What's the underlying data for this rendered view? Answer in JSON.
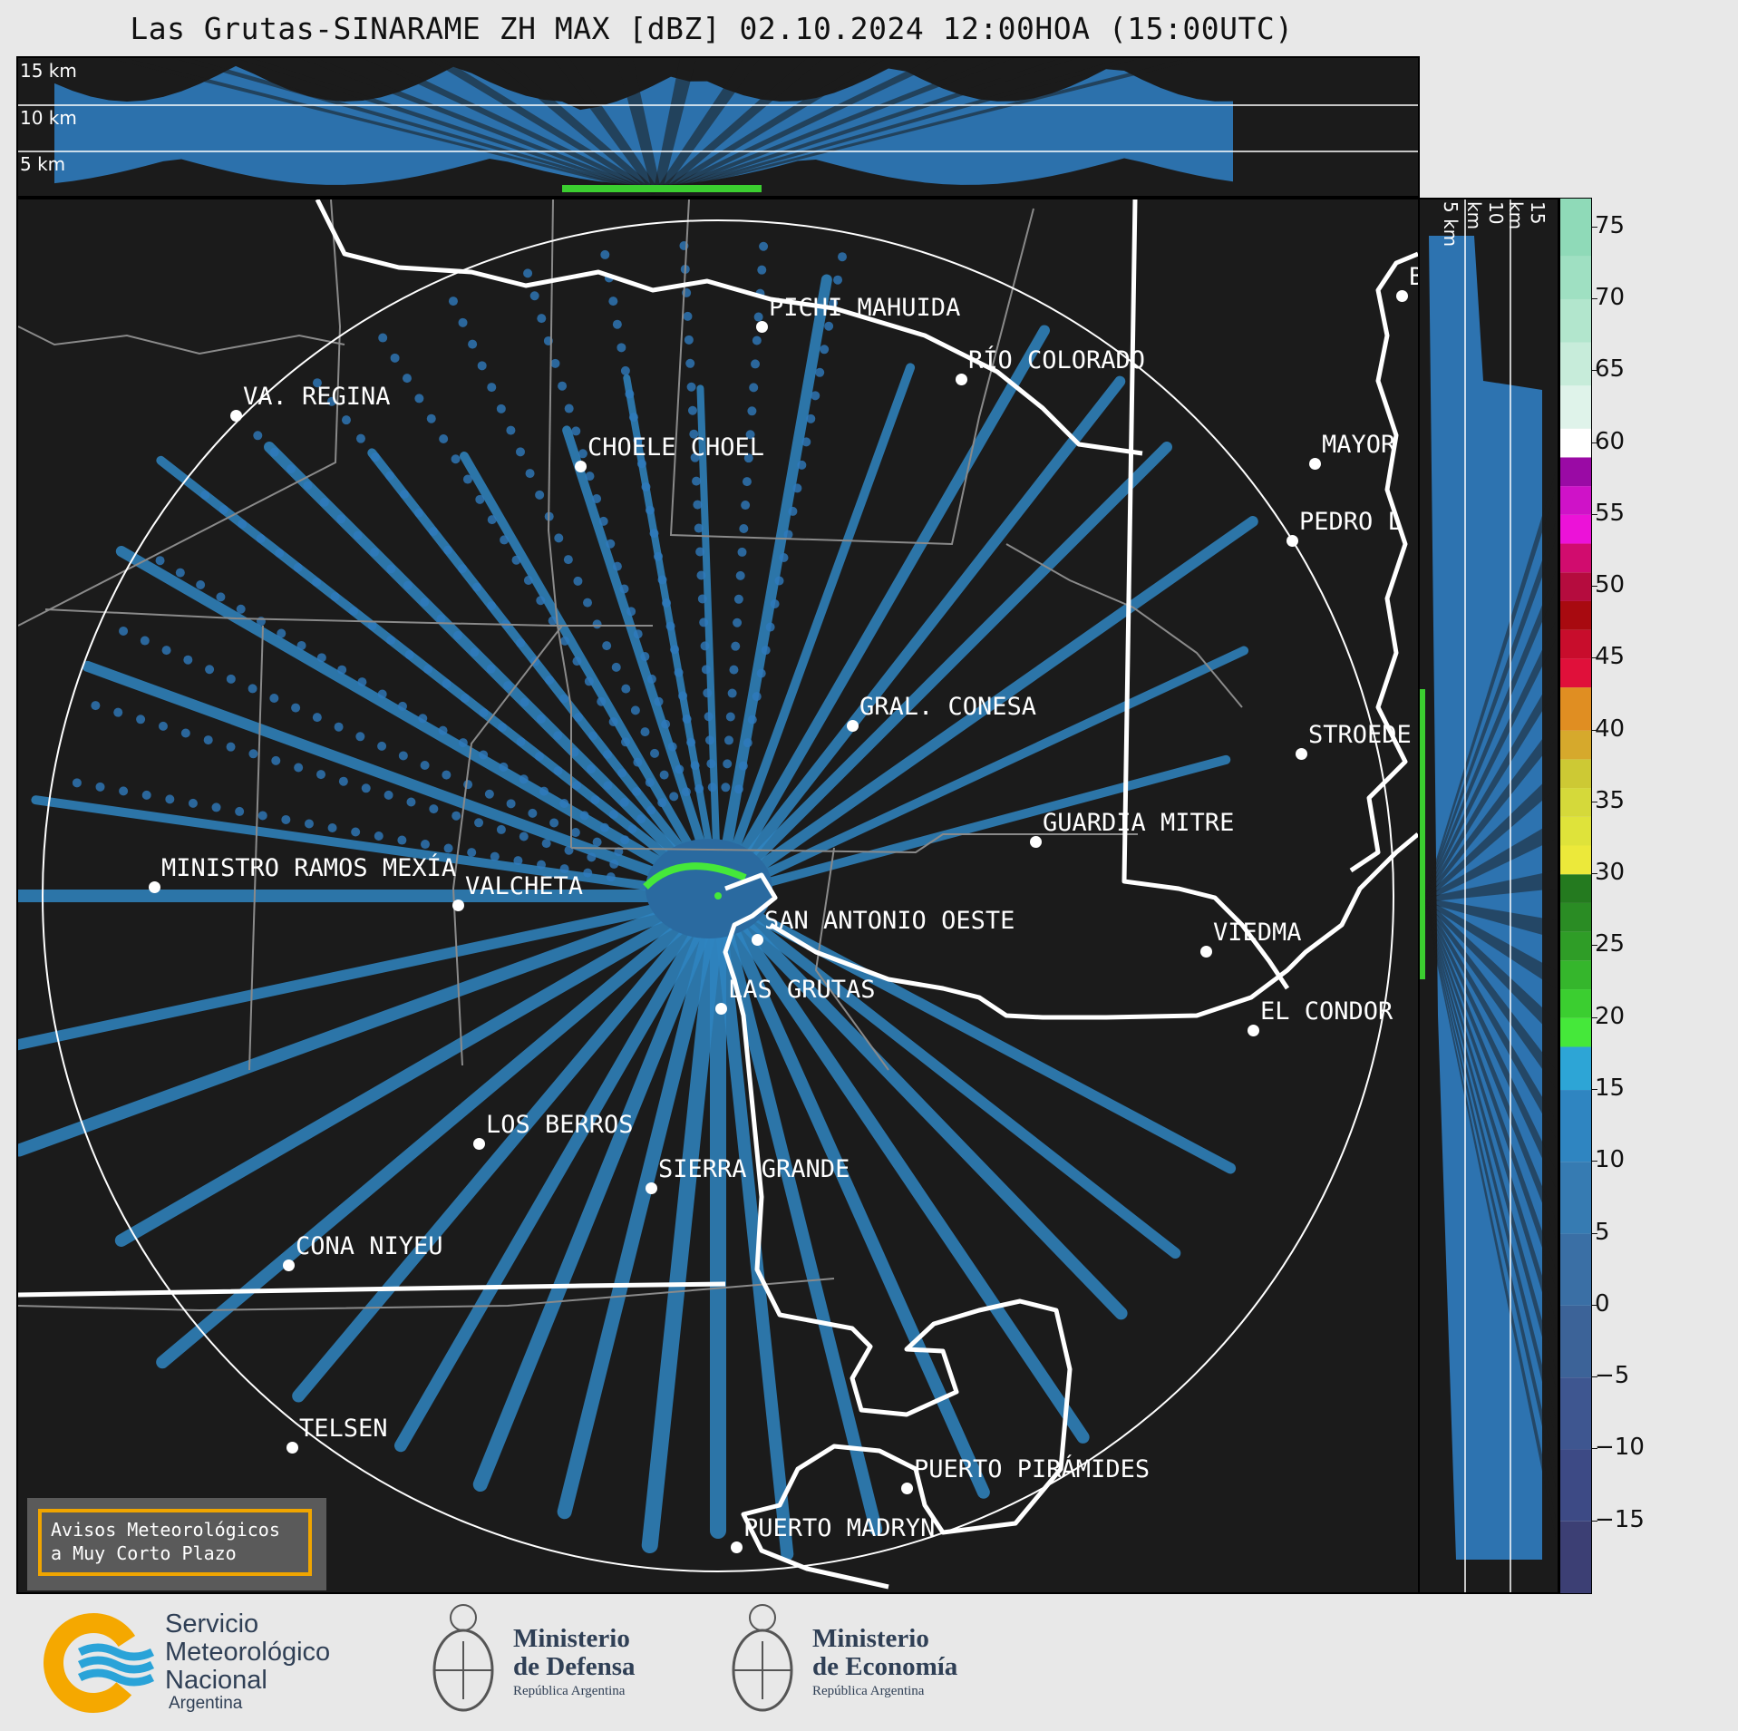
{
  "title": "Las Grutas-SINARAME ZH MAX [dBZ] 02.10.2024 12:00HOA (15:00UTC)",
  "altitude_labels_top": [
    "15 km",
    "10 km",
    "5 km"
  ],
  "altitude_labels_side": [
    "5 km",
    "10 km",
    "15 km"
  ],
  "colorbar": {
    "ticks": [
      "75",
      "70",
      "65",
      "60",
      "55",
      "50",
      "45",
      "40",
      "35",
      "30",
      "25",
      "20",
      "15",
      "10",
      "5",
      "0",
      "−5",
      "−10",
      "−15"
    ],
    "color_stops": [
      {
        "from": -20,
        "to": 18,
        "color": "#2f7bbd"
      },
      {
        "from": 18,
        "to": 30,
        "color": "#2fa832"
      },
      {
        "from": 30,
        "to": 43,
        "color": "#d8b82c"
      },
      {
        "from": 43,
        "to": 50,
        "color": "#c8102e"
      },
      {
        "from": 50,
        "to": 59,
        "color": "#c800c8"
      },
      {
        "from": 59,
        "to": 77,
        "color": "#b6ecd2"
      }
    ]
  },
  "cities": [
    {
      "name": "PICHI MAHUIDA"
    },
    {
      "name": "RÍO COLORADO"
    },
    {
      "name": "VA. REGINA"
    },
    {
      "name": "CHOELE CHOEL"
    },
    {
      "name": "MAYOR"
    },
    {
      "name": "PEDRO L"
    },
    {
      "name": "GRAL. CONESA"
    },
    {
      "name": "STROEDE"
    },
    {
      "name": "GUARDIA MITRE"
    },
    {
      "name": "MINISTRO RAMOS MEXÍA"
    },
    {
      "name": "VALCHETA"
    },
    {
      "name": "SAN ANTONIO OESTE"
    },
    {
      "name": "LAS GRUTAS"
    },
    {
      "name": "VIEDMA"
    },
    {
      "name": "EL CONDOR"
    },
    {
      "name": "LOS BERROS"
    },
    {
      "name": "SIERRA GRANDE"
    },
    {
      "name": "CONA NIYEU"
    },
    {
      "name": "TELSEN"
    },
    {
      "name": "PUERTO PIRÁMIDES"
    },
    {
      "name": "PUERTO MADRYN"
    },
    {
      "name": "B"
    }
  ],
  "notice": {
    "line1": "Avisos Meteorológicos",
    "line2": "a Muy Corto Plazo"
  },
  "footer": {
    "smn": {
      "line1": "Servicio",
      "line2": "Meteorológico",
      "line3": "Nacional",
      "line4": "Argentina"
    },
    "defensa": {
      "line1": "Ministerio",
      "line2": "de Defensa",
      "line3": "República Argentina"
    },
    "economia": {
      "line1": "Ministerio",
      "line2": "de Economía",
      "line3": "República Argentina"
    }
  }
}
